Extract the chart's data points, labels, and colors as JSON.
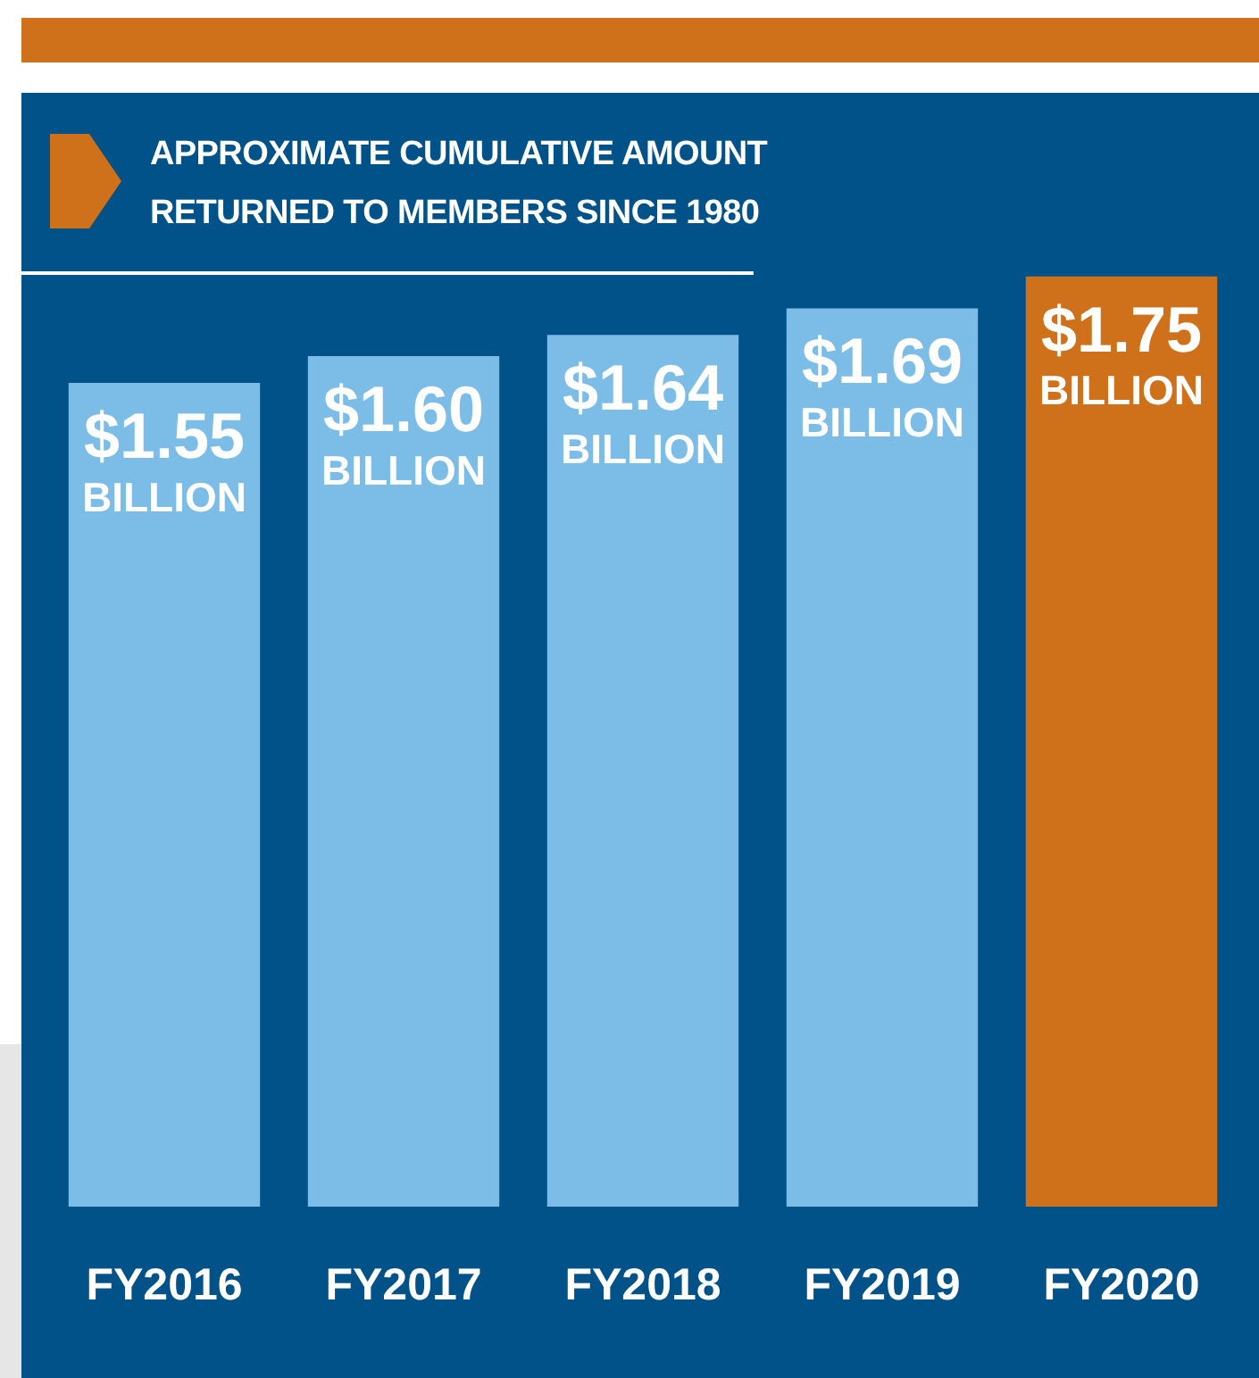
{
  "chart_data": {
    "type": "bar",
    "title": "APPROXIMATE CUMULATIVE AMOUNT RETURNED TO MEMBERS SINCE 1980",
    "categories": [
      "FY2016",
      "FY2017",
      "FY2018",
      "FY2019",
      "FY2020"
    ],
    "values": [
      1.55,
      1.6,
      1.64,
      1.69,
      1.75
    ],
    "colors": [
      "#7cbde8",
      "#7cbde8",
      "#7cbde8",
      "#7cbde8",
      "#cf701b"
    ],
    "value_labels": [
      "$1.55 BILLION",
      "$1.60 BILLION",
      "$1.64 BILLION",
      "$1.69 BILLION",
      "$1.75 BILLION"
    ],
    "tick_labels": "x",
    "grid": false,
    "legend": false
  }
}
